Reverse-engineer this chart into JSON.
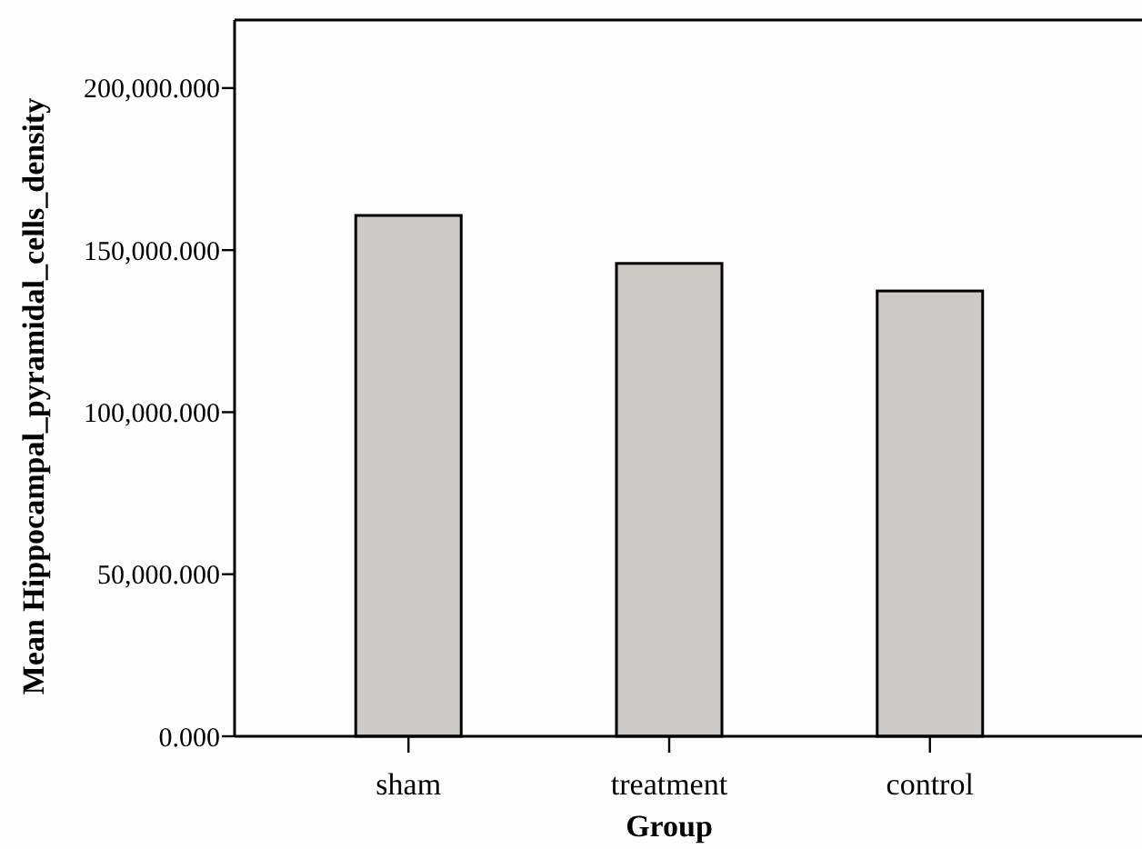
{
  "chart_data": {
    "type": "bar",
    "xlabel": "Group",
    "ylabel": "Mean Hippocampal_pyramidal_cells_density",
    "categories": [
      "sham",
      "treatment",
      "control"
    ],
    "values": [
      160700,
      145900,
      137400
    ],
    "color": "#cdcac6",
    "ylim": [
      0,
      221000
    ],
    "yticks": [
      {
        "value": 0,
        "label": "0.000"
      },
      {
        "value": 50000,
        "label": "50,000.000"
      },
      {
        "value": 100000,
        "label": "100,000.000"
      },
      {
        "value": 150000,
        "label": "150,000.000"
      },
      {
        "value": 200000,
        "label": "200,000.000"
      }
    ],
    "grid": false
  }
}
